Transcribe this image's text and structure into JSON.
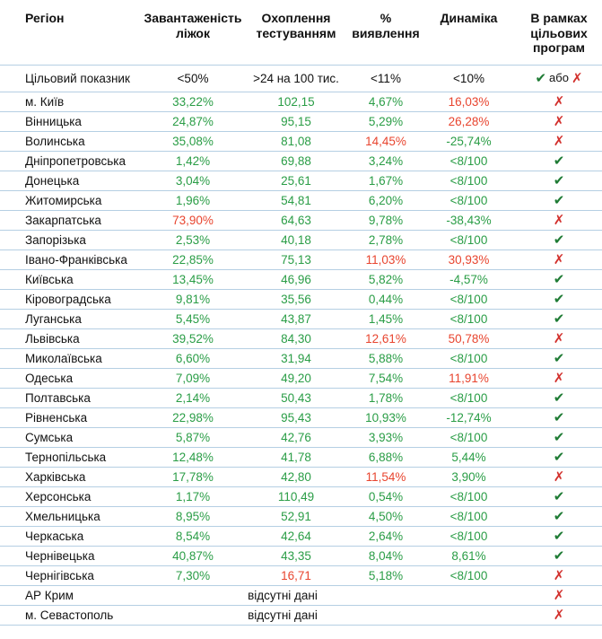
{
  "colors": {
    "green": "#2a9d46",
    "red": "#e8452f",
    "check": "#1e7b34",
    "cross": "#d2302c",
    "line": "#b5cfe3"
  },
  "icons": {
    "check": "✔",
    "cross": "✗"
  },
  "chart_data": {
    "type": "table",
    "columns": [
      "Регіон",
      "Завантаженість ліжок",
      "Охоплення тестуванням",
      "% виявлення",
      "Динаміка",
      "В рамках цільових програм"
    ],
    "target_row": {
      "label": "Цільовий показник",
      "bed": "<50%",
      "testing": ">24 на 100 тис.",
      "detection": "<11%",
      "dynamics": "<10%",
      "program_or": "або"
    },
    "no_data_text": "відсутні дані",
    "rows": [
      {
        "region": "м. Київ",
        "bed": [
          "33,22%",
          "g"
        ],
        "testing": [
          "102,15",
          "g"
        ],
        "detection": [
          "4,67%",
          "g"
        ],
        "dynamics": [
          "16,03%",
          "r"
        ],
        "program": "cross"
      },
      {
        "region": "Вінницька",
        "bed": [
          "24,87%",
          "g"
        ],
        "testing": [
          "95,15",
          "g"
        ],
        "detection": [
          "5,29%",
          "g"
        ],
        "dynamics": [
          "26,28%",
          "r"
        ],
        "program": "cross"
      },
      {
        "region": "Волинська",
        "bed": [
          "35,08%",
          "g"
        ],
        "testing": [
          "81,08",
          "g"
        ],
        "detection": [
          "14,45%",
          "r"
        ],
        "dynamics": [
          "-25,74%",
          "g"
        ],
        "program": "cross"
      },
      {
        "region": "Дніпропетровська",
        "bed": [
          "1,42%",
          "g"
        ],
        "testing": [
          "69,88",
          "g"
        ],
        "detection": [
          "3,24%",
          "g"
        ],
        "dynamics": [
          "<8/100",
          "g"
        ],
        "program": "check"
      },
      {
        "region": "Донецька",
        "bed": [
          "3,04%",
          "g"
        ],
        "testing": [
          "25,61",
          "g"
        ],
        "detection": [
          "1,67%",
          "g"
        ],
        "dynamics": [
          "<8/100",
          "g"
        ],
        "program": "check"
      },
      {
        "region": "Житомирська",
        "bed": [
          "1,96%",
          "g"
        ],
        "testing": [
          "54,81",
          "g"
        ],
        "detection": [
          "6,20%",
          "g"
        ],
        "dynamics": [
          "<8/100",
          "g"
        ],
        "program": "check"
      },
      {
        "region": "Закарпатська",
        "bed": [
          "73,90%",
          "r"
        ],
        "testing": [
          "64,63",
          "g"
        ],
        "detection": [
          "9,78%",
          "g"
        ],
        "dynamics": [
          "-38,43%",
          "g"
        ],
        "program": "cross"
      },
      {
        "region": "Запорізька",
        "bed": [
          "2,53%",
          "g"
        ],
        "testing": [
          "40,18",
          "g"
        ],
        "detection": [
          "2,78%",
          "g"
        ],
        "dynamics": [
          "<8/100",
          "g"
        ],
        "program": "check"
      },
      {
        "region": "Івано-Франківська",
        "bed": [
          "22,85%",
          "g"
        ],
        "testing": [
          "75,13",
          "g"
        ],
        "detection": [
          "11,03%",
          "r"
        ],
        "dynamics": [
          "30,93%",
          "r"
        ],
        "program": "cross"
      },
      {
        "region": "Київська",
        "bed": [
          "13,45%",
          "g"
        ],
        "testing": [
          "46,96",
          "g"
        ],
        "detection": [
          "5,82%",
          "g"
        ],
        "dynamics": [
          "-4,57%",
          "g"
        ],
        "program": "check"
      },
      {
        "region": "Кіровоградська",
        "bed": [
          "9,81%",
          "g"
        ],
        "testing": [
          "35,56",
          "g"
        ],
        "detection": [
          "0,44%",
          "g"
        ],
        "dynamics": [
          "<8/100",
          "g"
        ],
        "program": "check"
      },
      {
        "region": "Луганська",
        "bed": [
          "5,45%",
          "g"
        ],
        "testing": [
          "43,87",
          "g"
        ],
        "detection": [
          "1,45%",
          "g"
        ],
        "dynamics": [
          "<8/100",
          "g"
        ],
        "program": "check"
      },
      {
        "region": "Львівська",
        "bed": [
          "39,52%",
          "g"
        ],
        "testing": [
          "84,30",
          "g"
        ],
        "detection": [
          "12,61%",
          "r"
        ],
        "dynamics": [
          "50,78%",
          "r"
        ],
        "program": "cross"
      },
      {
        "region": "Миколаївська",
        "bed": [
          "6,60%",
          "g"
        ],
        "testing": [
          "31,94",
          "g"
        ],
        "detection": [
          "5,88%",
          "g"
        ],
        "dynamics": [
          "<8/100",
          "g"
        ],
        "program": "check"
      },
      {
        "region": "Одеська",
        "bed": [
          "7,09%",
          "g"
        ],
        "testing": [
          "49,20",
          "g"
        ],
        "detection": [
          "7,54%",
          "g"
        ],
        "dynamics": [
          "11,91%",
          "r"
        ],
        "program": "cross"
      },
      {
        "region": "Полтавська",
        "bed": [
          "2,14%",
          "g"
        ],
        "testing": [
          "50,43",
          "g"
        ],
        "detection": [
          "1,78%",
          "g"
        ],
        "dynamics": [
          "<8/100",
          "g"
        ],
        "program": "check"
      },
      {
        "region": "Рівненська",
        "bed": [
          "22,98%",
          "g"
        ],
        "testing": [
          "95,43",
          "g"
        ],
        "detection": [
          "10,93%",
          "g"
        ],
        "dynamics": [
          "-12,74%",
          "g"
        ],
        "program": "check"
      },
      {
        "region": "Сумська",
        "bed": [
          "5,87%",
          "g"
        ],
        "testing": [
          "42,76",
          "g"
        ],
        "detection": [
          "3,93%",
          "g"
        ],
        "dynamics": [
          "<8/100",
          "g"
        ],
        "program": "check"
      },
      {
        "region": "Тернопільська",
        "bed": [
          "12,48%",
          "g"
        ],
        "testing": [
          "41,78",
          "g"
        ],
        "detection": [
          "6,88%",
          "g"
        ],
        "dynamics": [
          "5,44%",
          "g"
        ],
        "program": "check"
      },
      {
        "region": "Харківська",
        "bed": [
          "17,78%",
          "g"
        ],
        "testing": [
          "42,80",
          "g"
        ],
        "detection": [
          "11,54%",
          "r"
        ],
        "dynamics": [
          "3,90%",
          "g"
        ],
        "program": "cross"
      },
      {
        "region": "Херсонська",
        "bed": [
          "1,17%",
          "g"
        ],
        "testing": [
          "110,49",
          "g"
        ],
        "detection": [
          "0,54%",
          "g"
        ],
        "dynamics": [
          "<8/100",
          "g"
        ],
        "program": "check"
      },
      {
        "region": "Хмельницька",
        "bed": [
          "8,95%",
          "g"
        ],
        "testing": [
          "52,91",
          "g"
        ],
        "detection": [
          "4,50%",
          "g"
        ],
        "dynamics": [
          "<8/100",
          "g"
        ],
        "program": "check"
      },
      {
        "region": "Черкаська",
        "bed": [
          "8,54%",
          "g"
        ],
        "testing": [
          "42,64",
          "g"
        ],
        "detection": [
          "2,64%",
          "g"
        ],
        "dynamics": [
          "<8/100",
          "g"
        ],
        "program": "check"
      },
      {
        "region": "Чернівецька",
        "bed": [
          "40,87%",
          "g"
        ],
        "testing": [
          "43,35",
          "g"
        ],
        "detection": [
          "8,04%",
          "g"
        ],
        "dynamics": [
          "8,61%",
          "g"
        ],
        "program": "check"
      },
      {
        "region": "Чернігівська",
        "bed": [
          "7,30%",
          "g"
        ],
        "testing": [
          "16,71",
          "r"
        ],
        "detection": [
          "5,18%",
          "g"
        ],
        "dynamics": [
          "<8/100",
          "g"
        ],
        "program": "cross"
      },
      {
        "region": "АР Крим",
        "no_data": true,
        "program": "cross"
      },
      {
        "region": "м. Севастополь",
        "no_data": true,
        "program": "cross"
      }
    ]
  }
}
